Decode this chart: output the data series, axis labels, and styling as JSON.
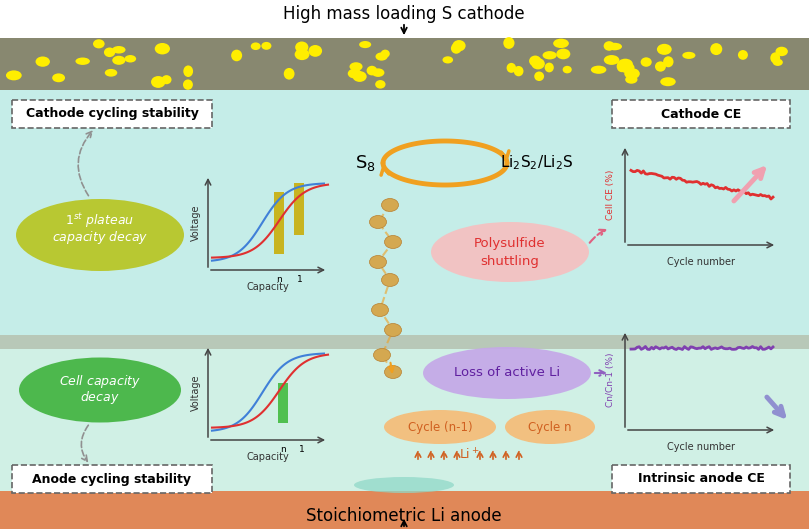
{
  "title_top": "High mass loading S cathode",
  "title_bottom": "Stoichiometric Li anode",
  "cathode_label": "Cathode cycling stability",
  "anode_label": "Anode cycling stability",
  "cathode_ce_label": "Cathode CE",
  "anode_ce_label": "Intrinsic anode CE",
  "bubble1_line1": "1",
  "bubble1_line2": "st plateau",
  "bubble1_line3": "capacity decay",
  "bubble1_color": "#b8c832",
  "bubble2_line1": "Cell capacity",
  "bubble2_line2": "decay",
  "bubble2_color": "#4db84d",
  "polysulfide_line1": "Polysulfide",
  "polysulfide_line2": "shuttling",
  "polysulfide_color": "#f5c0c0",
  "loss_li_text": "Loss of active Li",
  "loss_li_color": "#c5a8e8",
  "cycle_n1_text": "Cycle (n-1)",
  "cycle_n_text": "Cycle n",
  "cycle_oval_color": "#f2c080",
  "cycle_text_color": "#d06020",
  "arrow_orange": "#f0a020",
  "bead_color": "#d4a850",
  "bead_edge": "#b88030",
  "bg_top": "#c5ede8",
  "bg_bot": "#d0f0e5",
  "separator_color": "#b8c8b8",
  "cathode_layer_color": "#888870",
  "anode_layer_color": "#e08858",
  "dot_color": "#ffee00",
  "cell_ce_color": "#e03030",
  "cn_cn1_color": "#8040b0",
  "xlabel_capacity": "Capacity",
  "xlabel_cycle": "Cycle number",
  "ylabel_voltage": "Voltage",
  "cell_ce_ylabel": "Cell CE (%)",
  "cn_ylabel": "Cn/Cn-1 (%)",
  "pink_arrow_color": "#f0a0b0",
  "blue_arrow_color": "#9090d0",
  "gray_arrow_color": "#909090",
  "li_plus_color": "#d06020"
}
